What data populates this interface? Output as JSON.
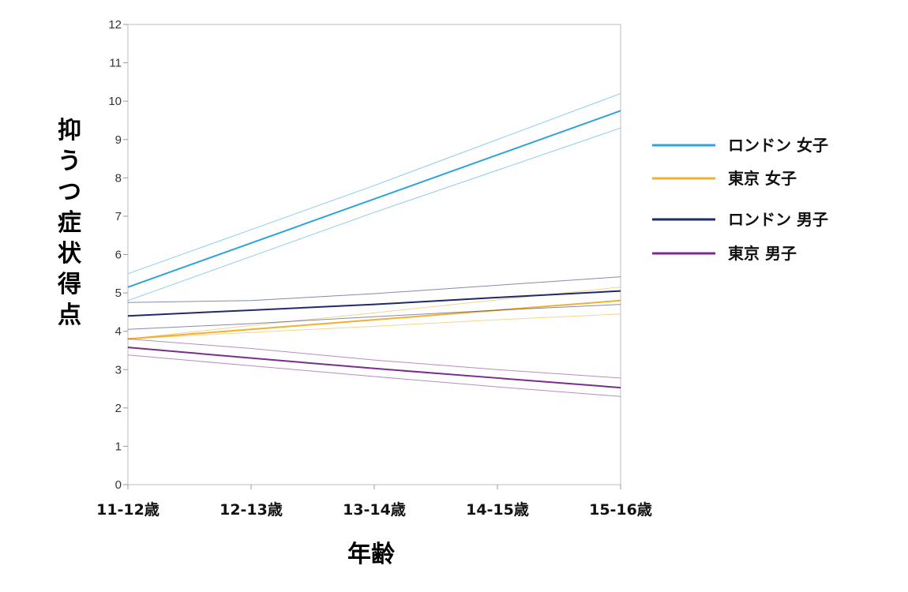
{
  "chart_data": {
    "type": "line",
    "categories": [
      "11-12歳",
      "12-13歳",
      "13-14歳",
      "14-15歳",
      "15-16歳"
    ],
    "xlabel": "年齢",
    "ylabel": "抑うつ症状得点",
    "ylim": [
      0,
      12
    ],
    "yticks": [
      "0",
      "1",
      "2",
      "3",
      "4",
      "5",
      "6",
      "7",
      "8",
      "9",
      "10",
      "11",
      "12"
    ],
    "grid": false,
    "legend_position": "right",
    "series": [
      {
        "name": "ロンドン 女子",
        "color": "#2ea3dc",
        "values": [
          5.15,
          6.3,
          7.45,
          8.6,
          9.75
        ],
        "lower": [
          4.8,
          5.95,
          7.1,
          8.2,
          9.3
        ],
        "upper": [
          5.5,
          6.65,
          7.8,
          9.0,
          10.2
        ]
      },
      {
        "name": "東京 女子",
        "color": "#f0b030",
        "values": [
          3.8,
          4.05,
          4.3,
          4.55,
          4.8
        ],
        "lower": [
          3.8,
          3.97,
          4.13,
          4.3,
          4.45
        ],
        "upper": [
          3.8,
          4.15,
          4.48,
          4.82,
          5.15
        ]
      },
      {
        "name": "ロンドン 男子",
        "color": "#1f2a6b",
        "values": [
          4.4,
          4.55,
          4.7,
          4.88,
          5.05
        ],
        "lower": [
          4.05,
          4.2,
          4.38,
          4.55,
          4.7
        ],
        "upper": [
          4.75,
          4.8,
          4.98,
          5.2,
          5.42
        ]
      },
      {
        "name": "東京 男子",
        "color": "#7b2d8e",
        "values": [
          3.58,
          3.3,
          3.03,
          2.78,
          2.53
        ],
        "lower": [
          3.38,
          3.1,
          2.82,
          2.55,
          2.3
        ],
        "upper": [
          3.8,
          3.55,
          3.25,
          3.0,
          2.78
        ]
      }
    ]
  }
}
